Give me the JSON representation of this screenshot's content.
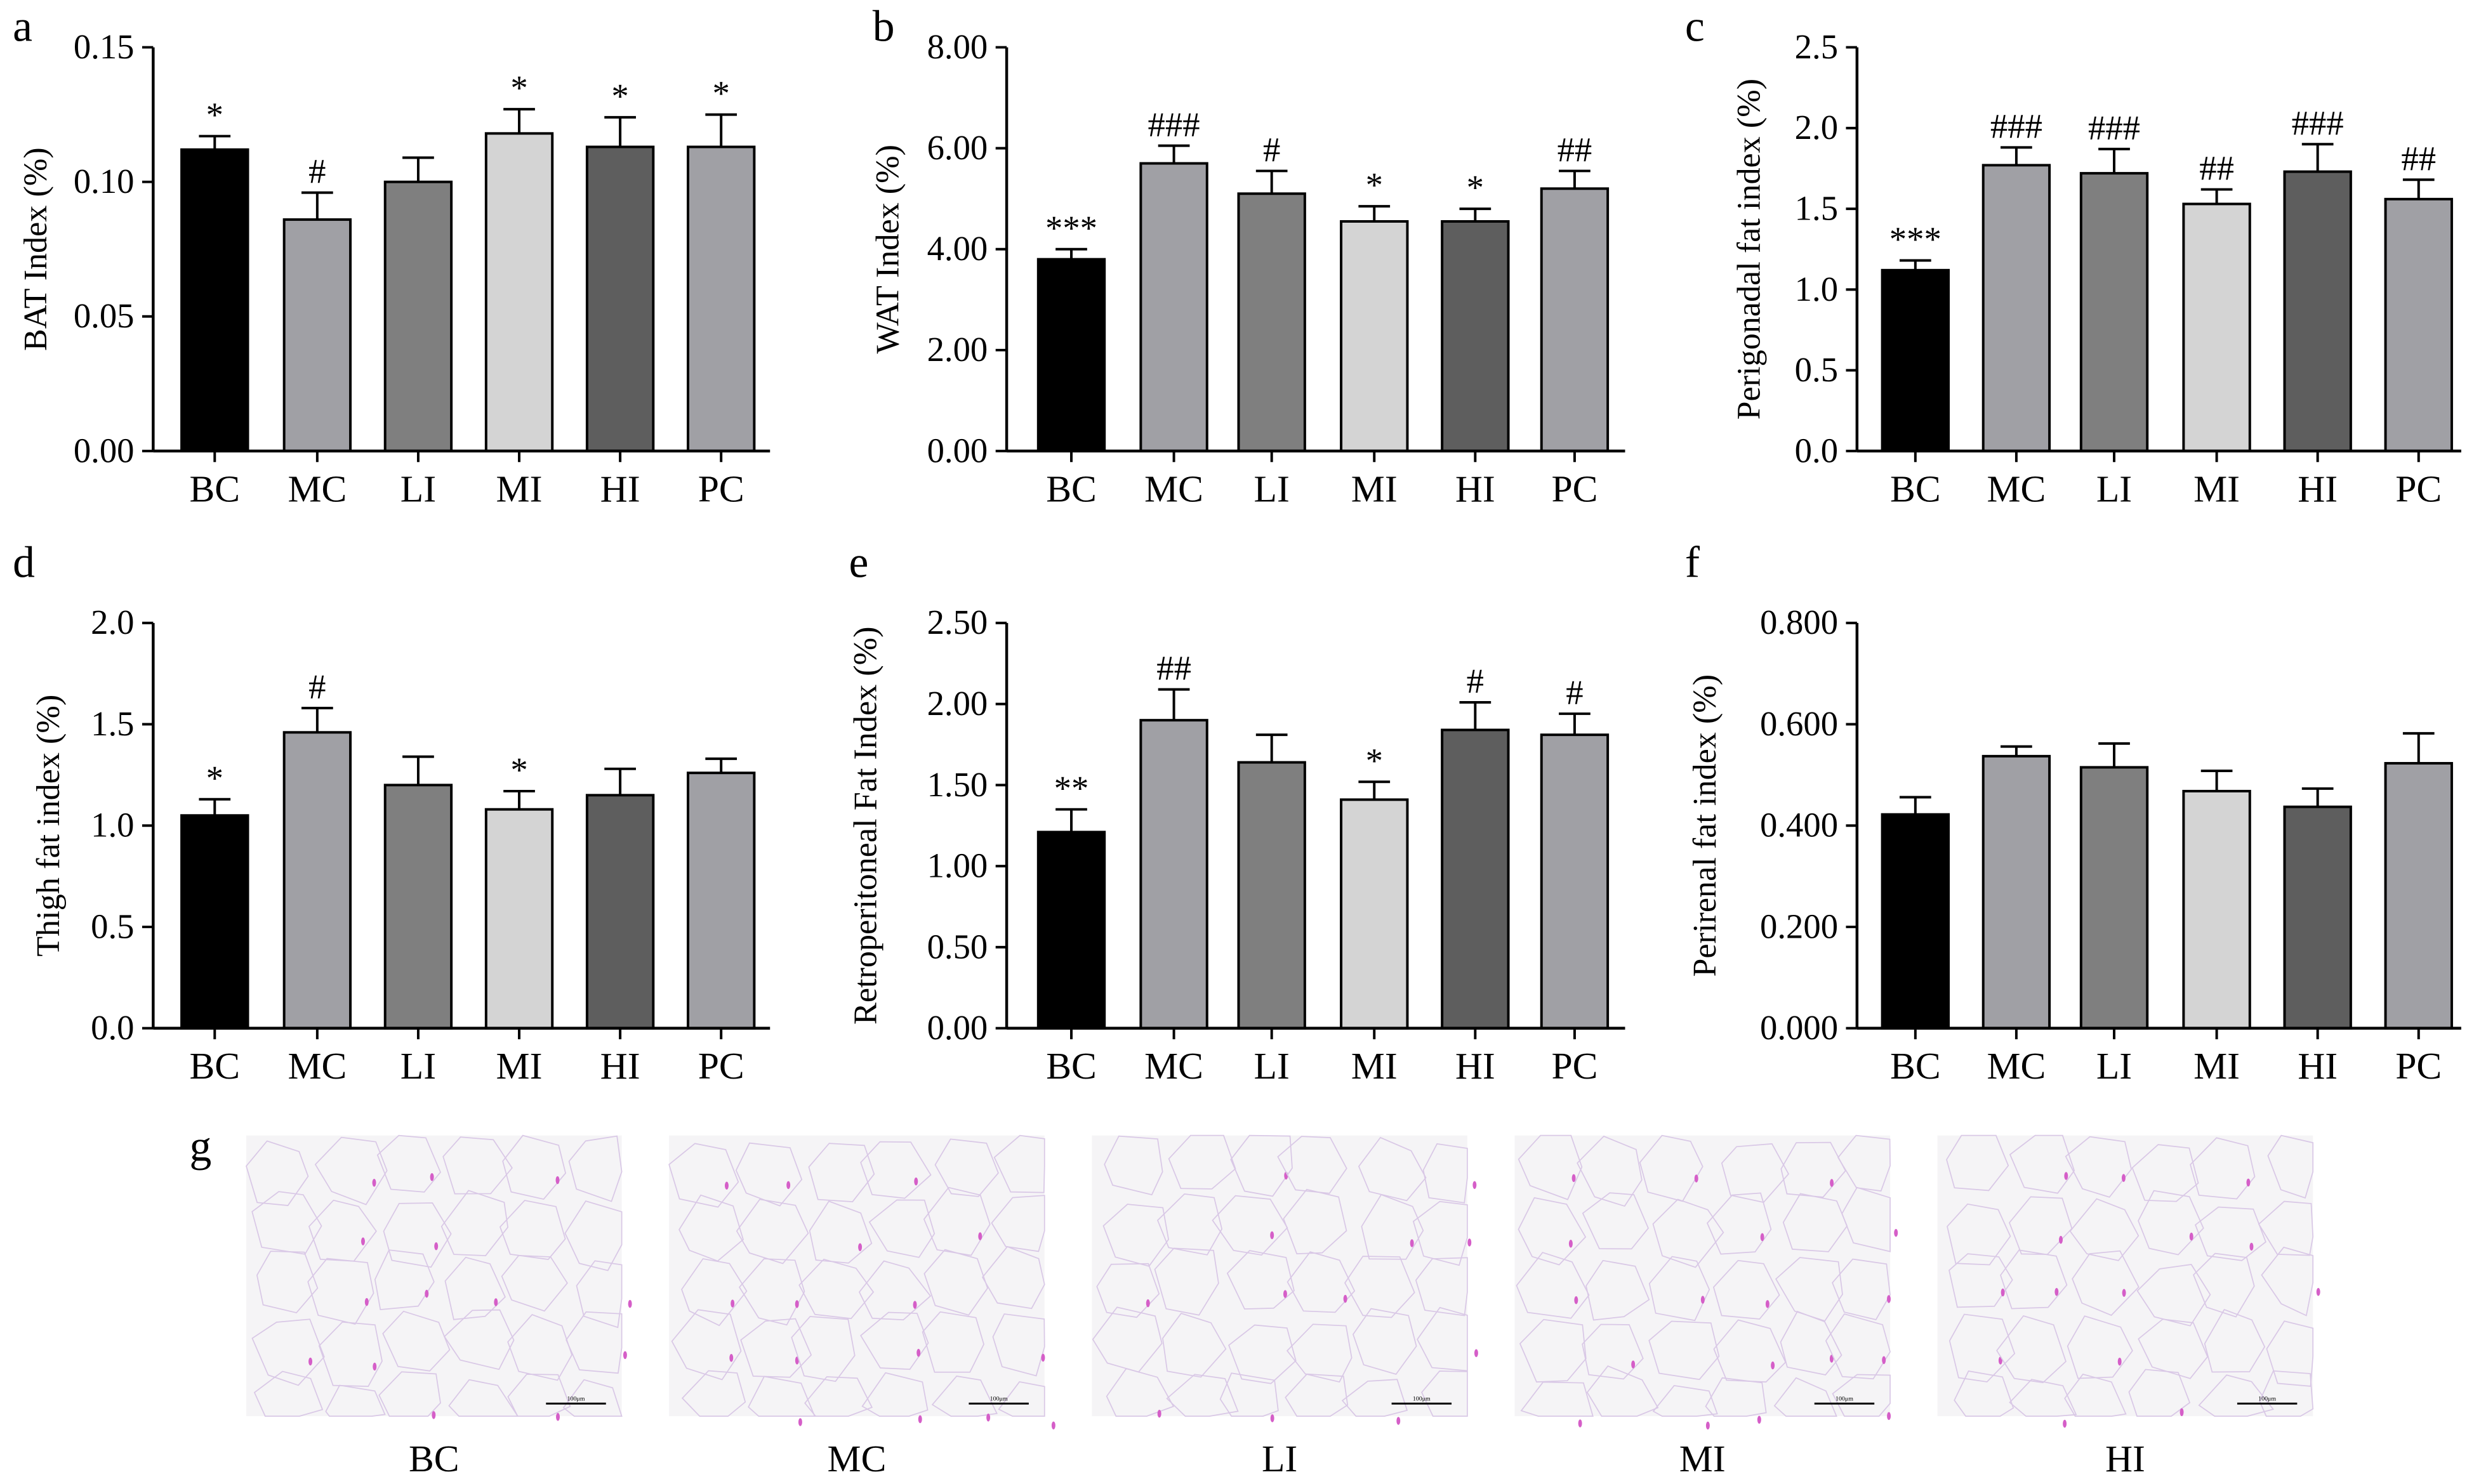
{
  "colors": {
    "BC": "#000000",
    "MC": "#a0a0a5",
    "LI": "#7f7f7f",
    "MI": "#d4d4d4",
    "HI": "#5e5e5e",
    "PC": "#a0a0a5"
  },
  "chart_data": [
    {
      "panel": "a",
      "type": "bar",
      "categories": [
        "BC",
        "MC",
        "LI",
        "MI",
        "HI",
        "PC"
      ],
      "ylabel": "BAT Index (%)",
      "ylim": [
        0,
        0.15
      ],
      "yticks": [
        "0.00",
        "0.05",
        "0.10",
        "0.15"
      ],
      "yticks_values": [
        0,
        0.05,
        0.1,
        0.15
      ],
      "values": [
        0.112,
        0.086,
        0.1,
        0.118,
        0.113,
        0.113
      ],
      "errors": [
        0.005,
        0.01,
        0.009,
        0.009,
        0.011,
        0.012
      ],
      "annotations": [
        "*",
        "#",
        "",
        "*",
        "*",
        "*"
      ]
    },
    {
      "panel": "b",
      "type": "bar",
      "categories": [
        "BC",
        "MC",
        "LI",
        "MI",
        "HI",
        "PC"
      ],
      "ylabel": "WAT Index (%)",
      "ylim": [
        0,
        8
      ],
      "yticks": [
        "0.00",
        "2.00",
        "4.00",
        "6.00",
        "8.00"
      ],
      "yticks_values": [
        0,
        2,
        4,
        6,
        8
      ],
      "values": [
        3.8,
        5.7,
        5.1,
        4.55,
        4.55,
        5.2
      ],
      "errors": [
        0.2,
        0.35,
        0.45,
        0.3,
        0.25,
        0.35
      ],
      "annotations": [
        "***",
        "###",
        "#",
        "*",
        "*",
        "##"
      ]
    },
    {
      "panel": "c",
      "type": "bar",
      "categories": [
        "BC",
        "MC",
        "LI",
        "MI",
        "HI",
        "PC"
      ],
      "ylabel": "Perigonadal fat index (%)",
      "ylim": [
        0,
        2.5
      ],
      "yticks": [
        "0.0",
        "0.5",
        "1.0",
        "1.5",
        "2.0",
        "2.5"
      ],
      "yticks_values": [
        0,
        0.5,
        1,
        1.5,
        2,
        2.5
      ],
      "values": [
        1.12,
        1.77,
        1.72,
        1.53,
        1.73,
        1.56
      ],
      "errors": [
        0.06,
        0.11,
        0.15,
        0.09,
        0.17,
        0.12
      ],
      "annotations": [
        "***",
        "###",
        "###",
        "##",
        "###",
        "##"
      ]
    },
    {
      "panel": "d",
      "type": "bar",
      "categories": [
        "BC",
        "MC",
        "LI",
        "MI",
        "HI",
        "PC"
      ],
      "ylabel": "Thigh fat index (%)",
      "ylim": [
        0,
        2.0
      ],
      "yticks": [
        "0.0",
        "0.5",
        "1.0",
        "1.5",
        "2.0"
      ],
      "yticks_values": [
        0,
        0.5,
        1,
        1.5,
        2
      ],
      "values": [
        1.05,
        1.46,
        1.2,
        1.08,
        1.15,
        1.26
      ],
      "errors": [
        0.08,
        0.12,
        0.14,
        0.09,
        0.13,
        0.07
      ],
      "annotations": [
        "*",
        "#",
        "",
        "*",
        "",
        ""
      ]
    },
    {
      "panel": "e",
      "type": "bar",
      "categories": [
        "BC",
        "MC",
        "LI",
        "MI",
        "HI",
        "PC"
      ],
      "ylabel": "Retroperitoneal Fat Index (%)",
      "ylim": [
        0,
        2.5
      ],
      "yticks": [
        "0.00",
        "0.50",
        "1.00",
        "1.50",
        "2.00",
        "2.50"
      ],
      "yticks_values": [
        0,
        0.5,
        1,
        1.5,
        2,
        2.5
      ],
      "values": [
        1.21,
        1.9,
        1.64,
        1.41,
        1.84,
        1.81
      ],
      "errors": [
        0.14,
        0.19,
        0.17,
        0.11,
        0.17,
        0.13
      ],
      "annotations": [
        "**",
        "##",
        "",
        "*",
        "#",
        "#"
      ]
    },
    {
      "panel": "f",
      "type": "bar",
      "categories": [
        "BC",
        "MC",
        "LI",
        "MI",
        "HI",
        "PC"
      ],
      "ylabel": "Perirenal fat index (%)",
      "ylim": [
        0,
        0.8
      ],
      "yticks": [
        "0.000",
        "0.200",
        "0.400",
        "0.600",
        "0.800"
      ],
      "yticks_values": [
        0,
        0.2,
        0.4,
        0.6,
        0.8
      ],
      "values": [
        0.422,
        0.537,
        0.515,
        0.468,
        0.437,
        0.523
      ],
      "errors": [
        0.034,
        0.019,
        0.047,
        0.04,
        0.036,
        0.059
      ],
      "annotations": [
        "",
        "",
        "",
        "",
        "",
        ""
      ]
    }
  ],
  "micrographs": {
    "panel": "g",
    "scale_bar": "100μm",
    "captions": [
      "BC",
      "MC",
      "LI",
      "MI",
      "HI"
    ]
  }
}
